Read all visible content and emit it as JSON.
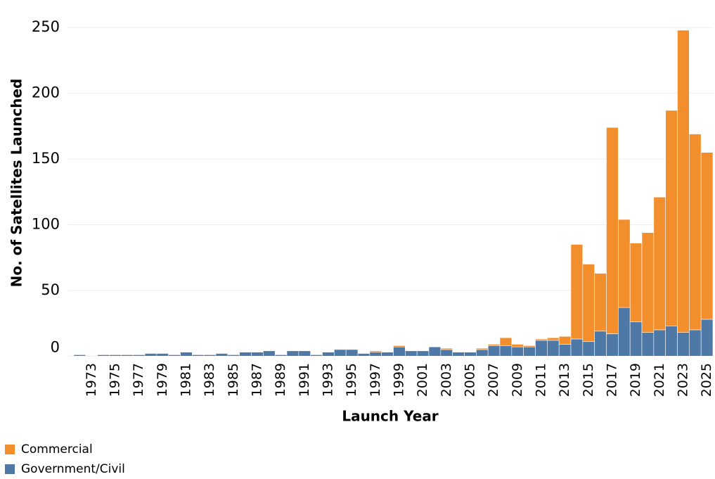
{
  "chart_data": {
    "type": "stacked_bar",
    "x_label": "Launch Year",
    "y_label": "No. of Satellites Launched",
    "categories": [
      null,
      "1973",
      null,
      "1975",
      null,
      "1977",
      null,
      "1979",
      null,
      "1981",
      null,
      "1983",
      null,
      "1985",
      null,
      "1987",
      null,
      "1989",
      null,
      "1991",
      null,
      "1993",
      null,
      "1995",
      null,
      "1997",
      null,
      "1999",
      null,
      "2001",
      null,
      "2003",
      null,
      "2005",
      null,
      "2007",
      null,
      "2009",
      null,
      "2011",
      null,
      "2013",
      null,
      "2015",
      null,
      "2017",
      null,
      "2019",
      null,
      "2021",
      null,
      "2023",
      null,
      "2025"
    ],
    "series": [
      {
        "name": "Government/Civil",
        "color": "#4e79a7",
        "values": [
          1,
          0,
          1,
          1,
          1,
          1,
          2,
          2,
          1,
          3,
          1,
          1,
          2,
          1,
          3,
          3,
          4,
          1,
          4,
          4,
          1,
          3,
          5,
          5,
          2,
          3,
          3,
          7,
          4,
          4,
          7,
          5,
          3,
          3,
          5,
          8,
          8,
          7,
          7,
          12,
          12,
          9,
          13,
          11,
          19,
          17,
          37,
          26,
          18,
          20,
          23,
          18,
          20,
          28
        ]
      },
      {
        "name": "Commercial",
        "color": "#f28e2b",
        "values": [
          0,
          0,
          0,
          0,
          0,
          0,
          0,
          0,
          0,
          0,
          0,
          0,
          0,
          0,
          0,
          0,
          0,
          0,
          0,
          0,
          0,
          0,
          0,
          0,
          0,
          1,
          0,
          1,
          0,
          0,
          0,
          1,
          0,
          0,
          1,
          1,
          6,
          2,
          1,
          1,
          2,
          6,
          72,
          59,
          44,
          157,
          67,
          60,
          76,
          101,
          164,
          230,
          149,
          127
        ]
      }
    ],
    "ylim": [
      -2,
      256
    ],
    "yticks": [
      0,
      50,
      100,
      150,
      200,
      250
    ],
    "grid": true
  }
}
